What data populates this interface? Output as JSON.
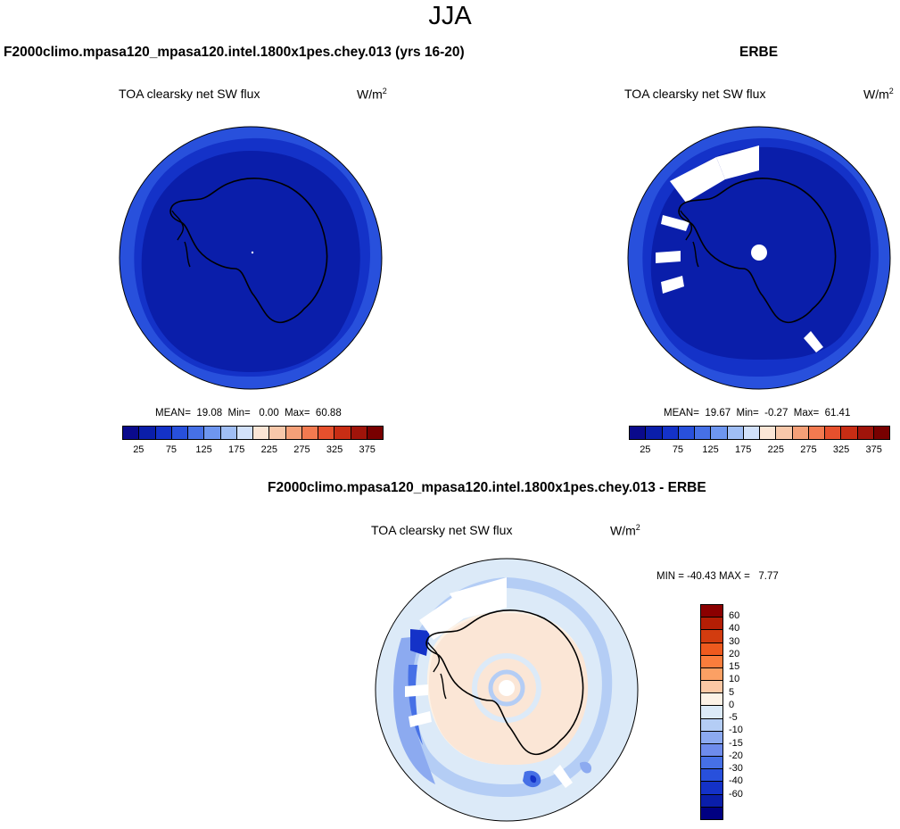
{
  "figure": {
    "season": "JJA"
  },
  "panels": [
    {
      "id": "model",
      "title": "F2000climo.mpasa120_mpasa120.intel.1800x1pes.chey.013 (yrs 16-20)",
      "variable": "TOA clearsky net SW flux",
      "units_base": "W/m",
      "units_exp": "2",
      "stats_text": "MEAN=  19.08  Min=   0.00  Max=  60.88"
    },
    {
      "id": "obs",
      "title": "ERBE",
      "variable": "TOA clearsky net SW flux",
      "units_base": "W/m",
      "units_exp": "2",
      "stats_text": "MEAN=  19.67  Min=  -0.27  Max=  61.41"
    },
    {
      "id": "diff",
      "title": "F2000climo.mpasa120_mpasa120.intel.1800x1pes.chey.013 - ERBE",
      "variable": "TOA clearsky net SW flux",
      "units_base": "W/m",
      "units_exp": "2",
      "stats_text": "MIN = -40.43 MAX =   7.77"
    }
  ],
  "colorbar_abs": {
    "colors": [
      "#0a0a8c",
      "#0a1eaa",
      "#1432c8",
      "#2850dc",
      "#4670e6",
      "#6e96f0",
      "#a0bef5",
      "#d2e1fa",
      "#fbe6d6",
      "#f8c8aa",
      "#f5a078",
      "#f27a50",
      "#e6502d",
      "#c82d14",
      "#a0140a",
      "#780000"
    ],
    "tick_labels": [
      "25",
      "75",
      "125",
      "175",
      "225",
      "275",
      "325",
      "375"
    ]
  },
  "colorbar_diff": {
    "colors": [
      "#8b0000",
      "#b41e05",
      "#d23c0f",
      "#ee5a1e",
      "#fa7d3c",
      "#fba064",
      "#fcc8a5",
      "#fdf2e6",
      "#dceaf8",
      "#b4cdf5",
      "#8caaf0",
      "#6e8cec",
      "#4670e6",
      "#2850dc",
      "#1432c8",
      "#0a1eaa",
      "#000082"
    ],
    "labels": [
      "60",
      "40",
      "30",
      "20",
      "15",
      "10",
      "5",
      "0",
      "-5",
      "-10",
      "-15",
      "-20",
      "-30",
      "-40",
      "-60"
    ]
  }
}
